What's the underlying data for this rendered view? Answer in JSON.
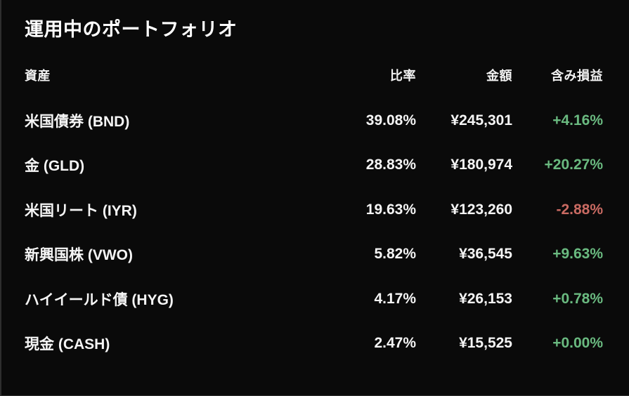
{
  "title": "運用中のポートフォリオ",
  "table": {
    "headers": {
      "asset": "資産",
      "ratio": "比率",
      "amount": "金額",
      "pl": "含み損益"
    },
    "rows": [
      {
        "asset": "米国債券 (BND)",
        "ratio": "39.08%",
        "amount": "¥245,301",
        "pl": "+4.16%",
        "pl_color": "positive"
      },
      {
        "asset": "金 (GLD)",
        "ratio": "28.83%",
        "amount": "¥180,974",
        "pl": "+20.27%",
        "pl_color": "positive"
      },
      {
        "asset": "米国リート (IYR)",
        "ratio": "19.63%",
        "amount": "¥123,260",
        "pl": "-2.88%",
        "pl_color": "negative"
      },
      {
        "asset": "新興国株 (VWO)",
        "ratio": "5.82%",
        "amount": "¥36,545",
        "pl": "+9.63%",
        "pl_color": "positive"
      },
      {
        "asset": "ハイイールド債 (HYG)",
        "ratio": "4.17%",
        "amount": "¥26,153",
        "pl": "+0.78%",
        "pl_color": "positive"
      },
      {
        "asset": "現金 (CASH)",
        "ratio": "2.47%",
        "amount": "¥15,525",
        "pl": "+0.00%",
        "pl_color": "positive"
      }
    ]
  },
  "colors": {
    "positive": "#6aba80",
    "negative": "#c96a62",
    "text": "#f5f5f5",
    "background": "#0a0a0a"
  }
}
